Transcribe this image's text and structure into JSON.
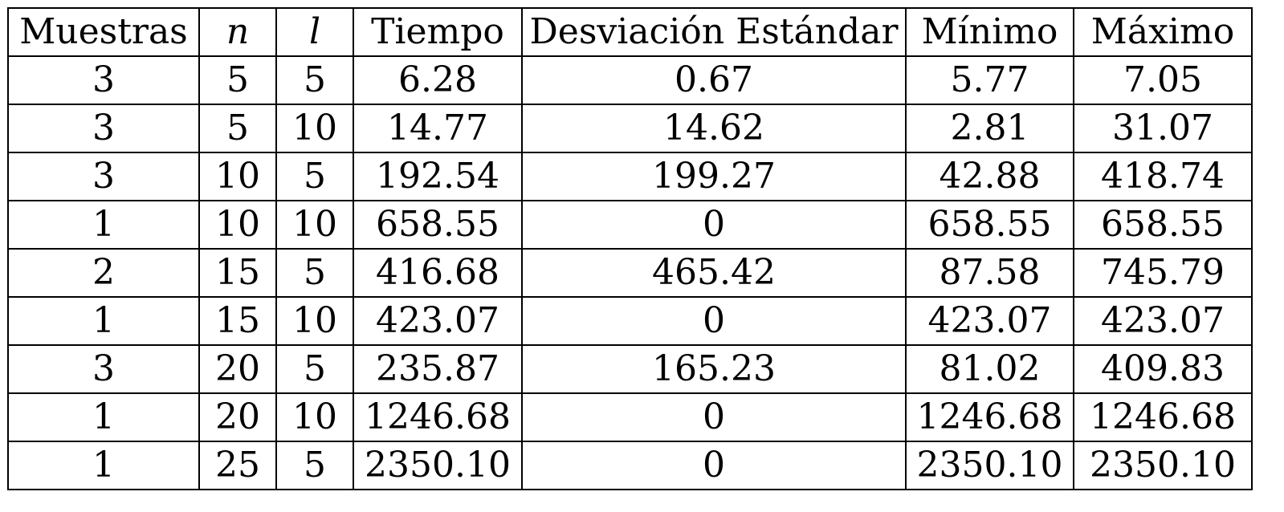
{
  "table": {
    "headers": [
      "Muestras",
      "n",
      "l",
      "Tiempo",
      "Desviación Estándar",
      "Mínimo",
      "Máximo"
    ],
    "rows": [
      [
        "3",
        "5",
        "5",
        "6.28",
        "0.67",
        "5.77",
        "7.05"
      ],
      [
        "3",
        "5",
        "10",
        "14.77",
        "14.62",
        "2.81",
        "31.07"
      ],
      [
        "3",
        "10",
        "5",
        "192.54",
        "199.27",
        "42.88",
        "418.74"
      ],
      [
        "1",
        "10",
        "10",
        "658.55",
        "0",
        "658.55",
        "658.55"
      ],
      [
        "2",
        "15",
        "5",
        "416.68",
        "465.42",
        "87.58",
        "745.79"
      ],
      [
        "1",
        "15",
        "10",
        "423.07",
        "0",
        "423.07",
        "423.07"
      ],
      [
        "3",
        "20",
        "5",
        "235.87",
        "165.23",
        "81.02",
        "409.83"
      ],
      [
        "1",
        "20",
        "10",
        "1246.68",
        "0",
        "1246.68",
        "1246.68"
      ],
      [
        "1",
        "25",
        "5",
        "2350.10",
        "0",
        "2350.10",
        "2350.10"
      ]
    ]
  }
}
